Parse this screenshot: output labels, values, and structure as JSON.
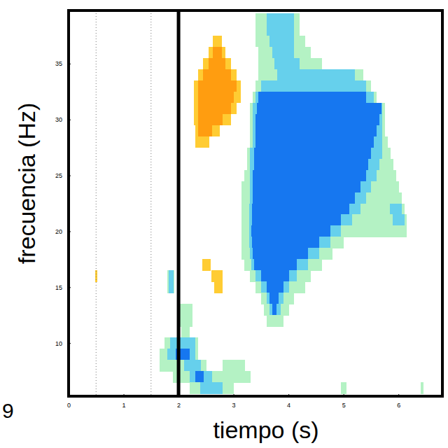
{
  "chart_data": {
    "type": "heatmap",
    "x_label": "tiempo (s)",
    "y_label": "frecuencia (Hz)",
    "annotations": [
      "9"
    ],
    "xlim": [
      0,
      6.8
    ],
    "ylim": [
      5.25,
      39.75
    ],
    "xticks": [
      0,
      1,
      2,
      3,
      4,
      5,
      6
    ],
    "yticks": [
      10,
      15,
      20,
      25,
      30,
      35
    ],
    "color_levels": [
      -3,
      -2,
      -1,
      1,
      2
    ],
    "colors": [
      "#1677f0",
      "#66d0ec",
      "#b4f2c4",
      "#ffcc33",
      "#ff9d10"
    ],
    "vlines": [
      {
        "x": 0.5,
        "line_style": "dotted"
      },
      {
        "x": 1.5,
        "line_style": "dotted"
      },
      {
        "x": 2,
        "line_style": "solid"
      }
    ],
    "rows": [
      {
        "f": 39,
        "runs": [
          [
            3.4,
            4.2,
            -1
          ],
          [
            3.6,
            4.1,
            -2
          ]
        ]
      },
      {
        "f": 38,
        "runs": [
          [
            3.4,
            4.2,
            -1
          ],
          [
            3.6,
            4.1,
            -2
          ]
        ]
      },
      {
        "f": 37,
        "runs": [
          [
            2.62,
            2.78,
            1
          ],
          [
            3.4,
            4.3,
            -1
          ],
          [
            3.65,
            4.1,
            -2
          ]
        ]
      },
      {
        "f": 36,
        "runs": [
          [
            2.55,
            2.85,
            1
          ],
          [
            2.62,
            2.78,
            2
          ],
          [
            3.45,
            4.4,
            -1
          ],
          [
            3.7,
            4.1,
            -2
          ]
        ]
      },
      {
        "f": 35,
        "runs": [
          [
            2.45,
            2.95,
            1
          ],
          [
            2.55,
            2.85,
            2
          ],
          [
            3.45,
            4.6,
            -1
          ],
          [
            3.75,
            4.2,
            -2
          ]
        ]
      },
      {
        "f": 34,
        "runs": [
          [
            2.35,
            3.05,
            1
          ],
          [
            2.45,
            2.95,
            2
          ],
          [
            3.45,
            5.35,
            -1
          ],
          [
            3.8,
            5.2,
            -2
          ]
        ]
      },
      {
        "f": 33,
        "runs": [
          [
            2.28,
            3.12,
            1
          ],
          [
            2.35,
            3.05,
            2
          ],
          [
            3.4,
            5.5,
            -1
          ],
          [
            3.5,
            5.4,
            -2
          ]
        ]
      },
      {
        "f": 32,
        "runs": [
          [
            2.28,
            3.12,
            1
          ],
          [
            2.35,
            3.0,
            2
          ],
          [
            3.35,
            5.6,
            -1
          ],
          [
            3.4,
            5.55,
            -2
          ],
          [
            3.45,
            5.4,
            -3
          ]
        ]
      },
      {
        "f": 31,
        "runs": [
          [
            2.28,
            3.05,
            1
          ],
          [
            2.35,
            2.95,
            2
          ],
          [
            3.3,
            5.75,
            -1
          ],
          [
            3.35,
            5.7,
            -2
          ],
          [
            3.42,
            5.68,
            -3
          ]
        ]
      },
      {
        "f": 30,
        "runs": [
          [
            2.28,
            2.95,
            1
          ],
          [
            2.35,
            2.8,
            2
          ],
          [
            3.3,
            5.75,
            -1
          ],
          [
            3.35,
            5.7,
            -2
          ],
          [
            3.4,
            5.65,
            -3
          ]
        ]
      },
      {
        "f": 29,
        "runs": [
          [
            2.3,
            2.75,
            1
          ],
          [
            2.35,
            2.6,
            2
          ],
          [
            3.3,
            5.75,
            -1
          ],
          [
            3.35,
            5.7,
            -2
          ],
          [
            3.4,
            5.6,
            -3
          ]
        ]
      },
      {
        "f": 28,
        "runs": [
          [
            2.3,
            2.55,
            1
          ],
          [
            3.3,
            5.8,
            -1
          ],
          [
            3.35,
            5.7,
            -2
          ],
          [
            3.4,
            5.55,
            -3
          ]
        ]
      },
      {
        "f": 27,
        "runs": [
          [
            3.25,
            5.85,
            -1
          ],
          [
            3.3,
            5.7,
            -2
          ],
          [
            3.38,
            5.5,
            -3
          ]
        ]
      },
      {
        "f": 26,
        "runs": [
          [
            3.25,
            5.9,
            -1
          ],
          [
            3.3,
            5.65,
            -2
          ],
          [
            3.37,
            5.45,
            -3
          ]
        ]
      },
      {
        "f": 25,
        "runs": [
          [
            3.2,
            5.95,
            -1
          ],
          [
            3.3,
            5.6,
            -2
          ],
          [
            3.35,
            5.4,
            -3
          ]
        ]
      },
      {
        "f": 24,
        "runs": [
          [
            3.15,
            6.0,
            -1
          ],
          [
            3.3,
            5.5,
            -2
          ],
          [
            3.35,
            5.3,
            -3
          ]
        ]
      },
      {
        "f": 23,
        "runs": [
          [
            3.15,
            6.05,
            -1
          ],
          [
            3.3,
            5.4,
            -2
          ],
          [
            3.35,
            5.2,
            -3
          ]
        ]
      },
      {
        "f": 22,
        "runs": [
          [
            3.15,
            6.1,
            -1
          ],
          [
            3.28,
            5.3,
            -2
          ],
          [
            3.33,
            5.1,
            -3
          ],
          [
            5.85,
            6.05,
            -2
          ]
        ]
      },
      {
        "f": 21,
        "runs": [
          [
            3.15,
            6.15,
            -1
          ],
          [
            3.28,
            5.15,
            -2
          ],
          [
            3.33,
            4.95,
            -3
          ],
          [
            5.9,
            6.1,
            -2
          ]
        ]
      },
      {
        "f": 20,
        "runs": [
          [
            3.15,
            6.15,
            -1
          ],
          [
            3.28,
            4.95,
            -2
          ],
          [
            3.32,
            4.75,
            -3
          ]
        ]
      },
      {
        "f": 19,
        "runs": [
          [
            3.15,
            5.0,
            -1
          ],
          [
            3.28,
            4.75,
            -2
          ],
          [
            3.33,
            4.55,
            -3
          ]
        ]
      },
      {
        "f": 18,
        "runs": [
          [
            3.15,
            4.8,
            -1
          ],
          [
            3.3,
            4.55,
            -2
          ],
          [
            3.35,
            4.35,
            -3
          ]
        ]
      },
      {
        "f": 17,
        "runs": [
          [
            2.43,
            2.58,
            1
          ],
          [
            3.2,
            4.6,
            -1
          ],
          [
            3.32,
            4.35,
            -2
          ],
          [
            3.38,
            4.15,
            -3
          ]
        ]
      },
      {
        "f": 16,
        "runs": [
          [
            0.49,
            0.52,
            1
          ],
          [
            1.8,
            1.92,
            -1
          ],
          [
            1.82,
            1.9,
            -2
          ],
          [
            2.6,
            2.8,
            1
          ],
          [
            3.3,
            4.4,
            -1
          ],
          [
            3.4,
            4.15,
            -2
          ],
          [
            3.5,
            4.0,
            -3
          ]
        ]
      },
      {
        "f": 15,
        "runs": [
          [
            1.8,
            1.92,
            -1
          ],
          [
            1.82,
            1.9,
            -2
          ],
          [
            2.65,
            2.8,
            1
          ],
          [
            3.4,
            4.3,
            -1
          ],
          [
            3.5,
            4.0,
            -2
          ],
          [
            3.6,
            3.9,
            -3
          ]
        ]
      },
      {
        "f": 14,
        "runs": [
          [
            3.5,
            4.1,
            -1
          ],
          [
            3.6,
            3.9,
            -2
          ],
          [
            3.65,
            3.82,
            -3
          ]
        ]
      },
      {
        "f": 13,
        "runs": [
          [
            2.03,
            2.25,
            -1
          ],
          [
            3.55,
            4.0,
            -1
          ],
          [
            3.65,
            3.85,
            -2
          ],
          [
            3.7,
            3.78,
            -3
          ]
        ]
      },
      {
        "f": 12,
        "runs": [
          [
            2.02,
            2.25,
            -1
          ],
          [
            3.6,
            3.9,
            -1
          ]
        ]
      },
      {
        "f": 11,
        "runs": [
          [
            2.05,
            2.2,
            -1
          ]
        ]
      },
      {
        "f": 10,
        "runs": [
          [
            1.75,
            2.35,
            -1
          ],
          [
            1.85,
            2.3,
            -2
          ]
        ]
      },
      {
        "f": 9,
        "runs": [
          [
            1.65,
            2.35,
            -1
          ],
          [
            1.8,
            2.3,
            -2
          ],
          [
            1.95,
            2.2,
            -3
          ]
        ]
      },
      {
        "f": 8,
        "runs": [
          [
            1.65,
            2.5,
            -1
          ],
          [
            2.1,
            2.4,
            -2
          ],
          [
            2.8,
            3.2,
            -1
          ]
        ]
      },
      {
        "f": 7,
        "runs": [
          [
            1.9,
            3.3,
            -1
          ],
          [
            2.2,
            2.6,
            -2
          ],
          [
            2.3,
            2.45,
            -3
          ]
        ]
      },
      {
        "f": 6,
        "runs": [
          [
            2.2,
            3.0,
            -1
          ],
          [
            2.4,
            2.8,
            -2
          ],
          [
            4.95,
            5.05,
            -1
          ],
          [
            6.4,
            6.45,
            -1
          ]
        ]
      }
    ]
  }
}
